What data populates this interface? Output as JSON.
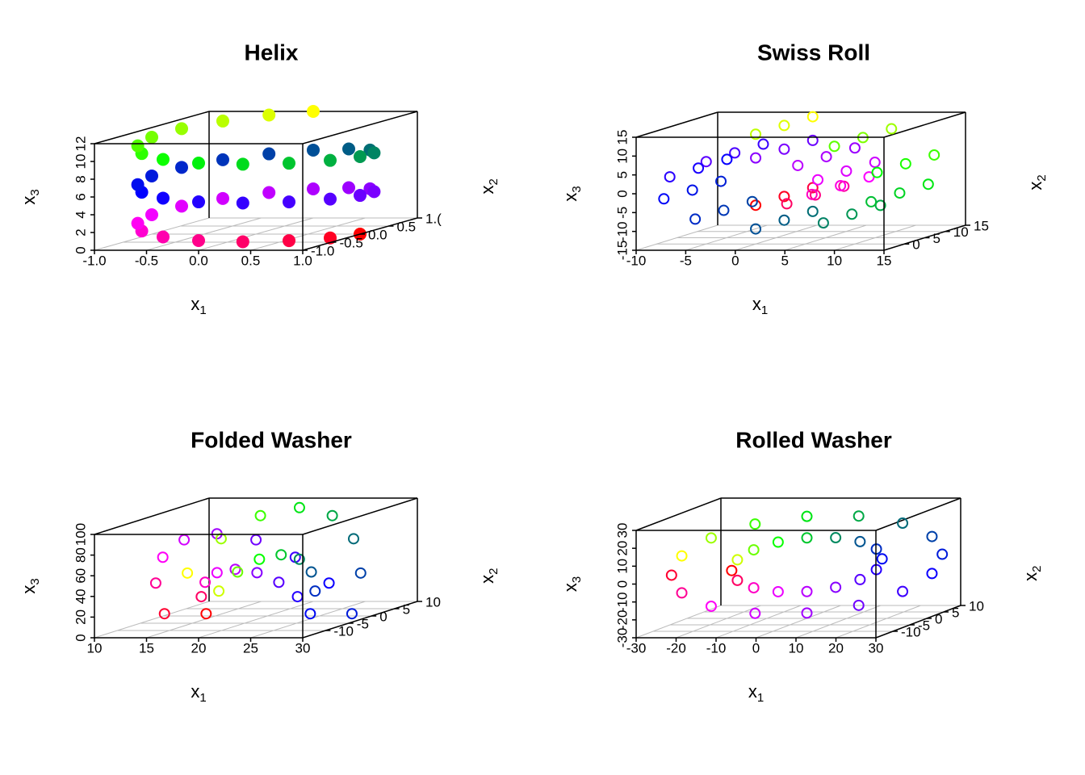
{
  "chart_data": [
    {
      "type": "scatter3d",
      "title": "Helix",
      "marker": "filled",
      "color_stops": [
        "#ff0000",
        "#ff00ff",
        "#8000ff",
        "#0000ff",
        "#006080",
        "#00ff00",
        "#ffff00"
      ],
      "xlabel": {
        "text": "x",
        "sub": "1"
      },
      "ylabel": {
        "text": "x",
        "sub": "2"
      },
      "zlabel": {
        "text": "x",
        "sub": "3"
      },
      "xlim": [
        -1,
        1
      ],
      "ylim": [
        -1,
        1
      ],
      "zlim": [
        0,
        12
      ],
      "xticks": [
        {
          "value": -1,
          "label": "-1.0"
        },
        {
          "value": -0.5,
          "label": "-0.5"
        },
        {
          "value": 0,
          "label": "0.0"
        },
        {
          "value": 0.5,
          "label": "0.5"
        },
        {
          "value": 1,
          "label": "1.0"
        }
      ],
      "yticks": [
        {
          "value": -1,
          "label": "-1.0"
        },
        {
          "value": -0.5,
          "label": "-0.5"
        },
        {
          "value": 0,
          "label": "0.0"
        },
        {
          "value": 0.5,
          "label": "0.5"
        },
        {
          "value": 1,
          "label": "1.("
        }
      ],
      "zticks": [
        0,
        2,
        4,
        6,
        8,
        10,
        12
      ],
      "x": [
        1,
        0.924,
        0.707,
        0.383,
        0,
        -0.383,
        -0.707,
        -0.924,
        -1,
        -0.924,
        -0.707,
        -0.383,
        0,
        0.383,
        0.707,
        0.924,
        1,
        0.924,
        0.707,
        0.383,
        0,
        -0.383,
        -0.707,
        -0.924,
        -1,
        -0.924,
        -0.707,
        -0.383,
        0,
        0.383,
        0.707,
        0.924,
        1,
        0.924,
        0.707,
        0.383,
        0,
        -0.383,
        -0.707,
        -0.924,
        -1,
        -0.924,
        -0.707,
        -0.383,
        0
      ],
      "y": [
        0,
        -0.383,
        -0.707,
        -0.924,
        -1,
        -0.924,
        -0.707,
        -0.383,
        0,
        0.383,
        0.707,
        0.924,
        1,
        0.924,
        0.707,
        0.383,
        0,
        -0.383,
        -0.707,
        -0.924,
        -1,
        -0.924,
        -0.707,
        -0.383,
        0,
        0.383,
        0.707,
        0.924,
        1,
        0.924,
        0.707,
        0.383,
        0,
        -0.383,
        -0.707,
        -0.924,
        -1,
        -0.924,
        -0.707,
        -0.383,
        0,
        0.383,
        0.707,
        0.924,
        1
      ],
      "z": [
        0,
        0.27,
        0.55,
        0.82,
        1.09,
        1.36,
        1.64,
        1.91,
        2.18,
        2.45,
        2.73,
        3,
        3.27,
        3.55,
        3.82,
        4.09,
        4.36,
        4.64,
        4.91,
        5.18,
        5.45,
        5.73,
        6,
        6.27,
        6.55,
        6.82,
        7.09,
        7.36,
        7.64,
        7.91,
        8.18,
        8.45,
        8.73,
        9,
        9.27,
        9.55,
        9.82,
        10.09,
        10.36,
        10.64,
        10.91,
        11.18,
        11.45,
        11.73,
        12
      ]
    },
    {
      "type": "scatter3d",
      "title": "Swiss Roll",
      "marker": "open",
      "color_stops": [
        "#ff0000",
        "#ff00ff",
        "#8000ff",
        "#0000ff",
        "#006080",
        "#00ff00",
        "#ffff00"
      ],
      "xlabel": {
        "text": "x",
        "sub": "1"
      },
      "ylabel": {
        "text": "x",
        "sub": "2"
      },
      "zlabel": {
        "text": "x",
        "sub": "3"
      },
      "xlim": [
        -10,
        15
      ],
      "ylim": [
        -5,
        15
      ],
      "zlim": [
        -15,
        15
      ],
      "xticks": [
        -10,
        -5,
        0,
        5,
        10,
        15
      ],
      "yticks": [
        0,
        5,
        10,
        15
      ],
      "zticks": [
        -15,
        -10,
        -5,
        0,
        5,
        10,
        15
      ],
      "x": [
        0,
        0,
        0,
        3.14,
        3.14,
        3.14,
        5.68,
        5.68,
        5.68,
        6.27,
        6.27,
        6.27,
        4.25,
        4.25,
        4.25,
        0,
        0,
        0,
        -4.99,
        -4.99,
        -4.99,
        -8.66,
        -8.66,
        -8.66,
        -9.26,
        -9.26,
        -9.26,
        -6.1,
        -6.1,
        -6.1,
        0,
        0,
        0,
        6.83,
        6.83,
        6.83,
        11.65,
        11.65,
        11.65,
        12.25,
        12.25,
        12.25,
        7.94,
        7.94,
        7.94,
        0,
        0,
        0
      ],
      "y": [
        0,
        7,
        14,
        0,
        7,
        14,
        0,
        7,
        14,
        0,
        7,
        14,
        0,
        7,
        14,
        0,
        7,
        14,
        0,
        7,
        14,
        0,
        7,
        14,
        0,
        7,
        14,
        0,
        7,
        14,
        0,
        7,
        14,
        0,
        7,
        14,
        0,
        7,
        14,
        0,
        7,
        14,
        0,
        7,
        14,
        0,
        7,
        14
      ],
      "z": [
        -4.71,
        -4.71,
        -4.71,
        -4.32,
        -4.32,
        -4.32,
        -1.84,
        -1.84,
        -1.84,
        2.04,
        2.04,
        2.04,
        5.85,
        5.85,
        5.85,
        7.85,
        7.85,
        7.85,
        6.86,
        6.86,
        6.86,
        2.82,
        2.82,
        2.82,
        -3.01,
        -3.01,
        -3.01,
        -8.39,
        -8.39,
        -8.39,
        -11,
        -11,
        -11,
        -9.4,
        -9.4,
        -9.4,
        -3.79,
        -3.79,
        -3.79,
        3.98,
        3.98,
        3.98,
        10.93,
        10.93,
        10.93,
        14.14,
        14.14,
        14.14
      ]
    },
    {
      "type": "scatter3d",
      "title": "Folded Washer",
      "marker": "open",
      "color_stops": [
        "#ff0000",
        "#ff00ff",
        "#8000ff",
        "#0000ff",
        "#006080",
        "#00ff00",
        "#ffff00"
      ],
      "xlabel": {
        "text": "x",
        "sub": "1"
      },
      "ylabel": {
        "text": "x",
        "sub": "2"
      },
      "zlabel": {
        "text": "x",
        "sub": "3"
      },
      "xlim": [
        10,
        30
      ],
      "ylim": [
        -15,
        10
      ],
      "zlim": [
        0,
        100
      ],
      "xticks": [
        10,
        15,
        20,
        25,
        30
      ],
      "yticks": [
        -10,
        -5,
        0,
        5,
        10
      ],
      "zticks": [
        0,
        20,
        40,
        60,
        80,
        100
      ],
      "x": [
        15,
        11,
        15.38,
        11.68,
        16.46,
        13.64,
        18.08,
        16.55,
        20,
        20,
        21.92,
        23.45,
        23.54,
        26.36,
        24.62,
        28.32,
        25,
        29,
        24.62,
        28.32,
        23.54,
        26.36,
        21.92,
        23.45,
        20,
        20,
        18.08,
        16.55,
        16.46,
        13.64,
        15.38,
        11.68
      ],
      "y": [
        -2,
        -2,
        -3.92,
        -5.45,
        -5.54,
        -8.36,
        -6.62,
        -10.32,
        -7,
        -11,
        -6.62,
        -10.32,
        -5.54,
        -8.36,
        -3.92,
        -5.45,
        -2,
        -2,
        -0.09,
        1.45,
        1.54,
        4.36,
        2.62,
        6.32,
        3,
        7,
        2.62,
        6.32,
        1.54,
        4.36,
        -0.09,
        1.45
      ],
      "z": [
        5,
        5,
        24.2,
        39.5,
        40.4,
        68.6,
        51.2,
        88.2,
        55,
        95,
        51.2,
        88.2,
        40.4,
        68.6,
        24.2,
        39.5,
        5,
        5,
        24.2,
        39.5,
        40.4,
        68.6,
        51.2,
        88.2,
        55,
        95,
        51.2,
        88.2,
        40.4,
        68.6,
        24.2,
        39.5
      ]
    },
    {
      "type": "scatter3d",
      "title": "Rolled Washer",
      "marker": "open",
      "color_stops": [
        "#ff0000",
        "#ff00ff",
        "#8000ff",
        "#0000ff",
        "#006080",
        "#00ff00",
        "#ffff00"
      ],
      "xlabel": {
        "text": "x",
        "sub": "1"
      },
      "ylabel": {
        "text": "x",
        "sub": "2"
      },
      "zlabel": {
        "text": "x",
        "sub": "3"
      },
      "xlim": [
        -30,
        30
      ],
      "ylim": [
        -15,
        10
      ],
      "zlim": [
        -30,
        30
      ],
      "xticks": [
        -30,
        -20,
        -10,
        0,
        10,
        20,
        30
      ],
      "yticks": [
        -10,
        -5,
        0,
        5,
        10
      ],
      "zticks": [
        -30,
        -20,
        -10,
        0,
        10,
        20,
        30
      ],
      "x": [
        -15,
        -27,
        -13.86,
        -24.95,
        -10.61,
        -19.09,
        -5.74,
        -10.34,
        0,
        0,
        5.74,
        10.34,
        10.61,
        19.09,
        13.86,
        24.95,
        15,
        27,
        13.86,
        24.95,
        10.61,
        19.09,
        5.74,
        10.34,
        0,
        0,
        -5.74,
        -10.34,
        -10.61,
        -19.09,
        -13.86,
        -24.95
      ],
      "y": [
        -4.5,
        -8.1,
        -4.16,
        -7.49,
        -3.18,
        -5.73,
        -1.72,
        -3.1,
        0,
        0,
        1.72,
        3.1,
        3.18,
        5.73,
        4.16,
        7.49,
        4.5,
        8.1,
        4.16,
        7.49,
        3.18,
        5.73,
        1.72,
        3.1,
        0,
        0,
        -1.72,
        -3.1,
        -3.18,
        -5.73,
        -4.16,
        -7.49
      ],
      "z": [
        0,
        0,
        -5.74,
        -10.34,
        -10.61,
        -19.09,
        -13.86,
        -24.95,
        -15,
        -27,
        -13.86,
        -24.95,
        -10.61,
        -19.09,
        -5.74,
        -10.34,
        0,
        0,
        5.74,
        10.34,
        10.61,
        19.09,
        13.86,
        24.95,
        15,
        27,
        13.86,
        24.95,
        10.61,
        19.09,
        5.74,
        10.34
      ]
    }
  ]
}
